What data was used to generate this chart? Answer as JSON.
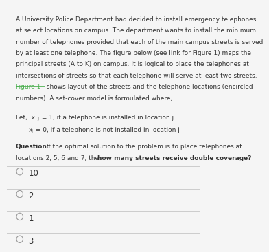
{
  "bg_color": "#f5f5f5",
  "text_color": "#333333",
  "link_color": "#4caf50",
  "lines": [
    "A University Police Department had decided to install emergency telephones",
    "at select locations on campus. The department wants to install the minimum",
    "number of telephones provided that each of the main campus streets is served",
    "by at least one telephone. The figure below (see link for Figure 1) maps the",
    "principal streets (A to K) on campus. It is logical to place the telephones at",
    "intersections of streets so that each telephone will serve at least two streets.",
    "Figure 1 shows layout of the streets and the telephone locations (encircled",
    "numbers). A set-cover model is formulated where,"
  ],
  "let1_pre": "Let,  x",
  "let1_sub": "j",
  "let1_post": " = 1, if a telephone is installed in location j",
  "let2_pre": "x",
  "let2_sub": "j",
  "let2_post": " = 0, if a telephone is not installed in location j",
  "q_bold": "Question:",
  "q_normal1": "  If the optimal solution to the problem is to place telephones at",
  "q_line2_normal": "locations 2, 5, 6 and 7, then ",
  "q_line2_bold": "how many streets receive double coverage?",
  "choices": [
    "10",
    "2",
    "1",
    "3"
  ],
  "divider_color": "#cccccc",
  "choice_text_color": "#333333"
}
